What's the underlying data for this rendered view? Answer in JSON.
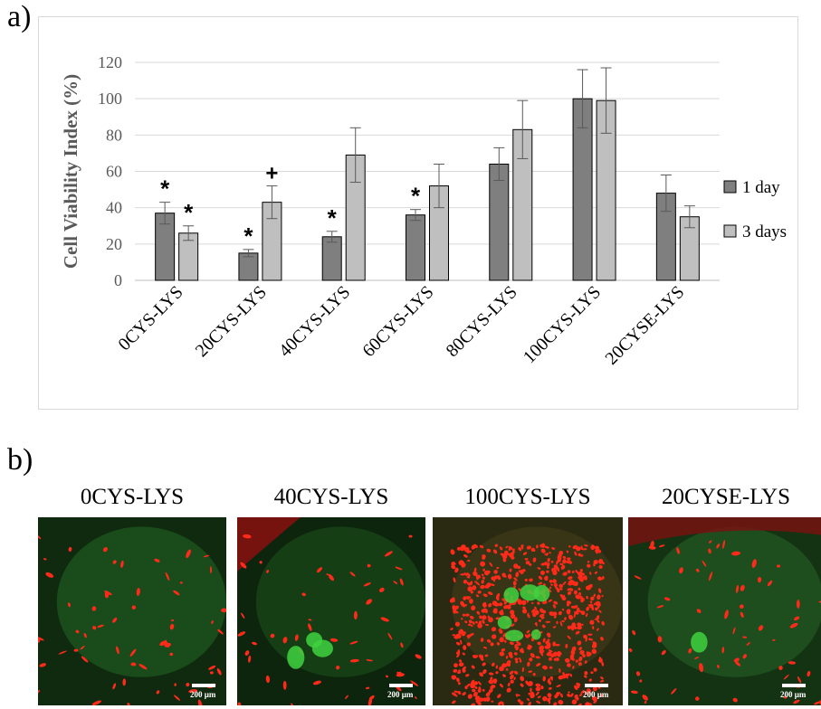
{
  "panel_a_label": "a)",
  "panel_b_label": "b)",
  "chart_data": {
    "type": "bar",
    "ylabel": "Cell Viability Index (%)",
    "xlabel": "",
    "ylim": [
      0,
      120
    ],
    "yticks": [
      0,
      20,
      40,
      60,
      80,
      100,
      120
    ],
    "grid": true,
    "legend_position": "right",
    "categories": [
      "0CYS-LYS",
      "20CYS-LYS",
      "40CYS-LYS",
      "60CYS-LYS",
      "80CYS-LYS",
      "100CYS-LYS",
      "20CYSE-LYS"
    ],
    "series": [
      {
        "name": "1 day",
        "color": "#7f7f7f",
        "values": [
          37,
          15,
          24,
          36,
          64,
          100,
          48
        ],
        "errors": [
          6,
          2,
          3,
          3,
          9,
          16,
          10
        ],
        "marks": [
          "*",
          "*",
          "*",
          "*",
          "",
          "",
          ""
        ]
      },
      {
        "name": "3 days",
        "color": "#bfbfbf",
        "values": [
          26,
          43,
          69,
          52,
          83,
          99,
          35
        ],
        "errors": [
          4,
          9,
          15,
          12,
          16,
          18,
          6
        ],
        "marks": [
          "*",
          "+",
          "",
          "",
          "",
          "",
          ""
        ]
      }
    ]
  },
  "micrographs": [
    {
      "title": "0CYS-LYS",
      "scale": "200 µm"
    },
    {
      "title": "40CYS-LYS",
      "scale": "200 µm"
    },
    {
      "title": "100CYS-LYS",
      "scale": "200 µm"
    },
    {
      "title": "20CYSE-LYS",
      "scale": "200 µm"
    }
  ]
}
